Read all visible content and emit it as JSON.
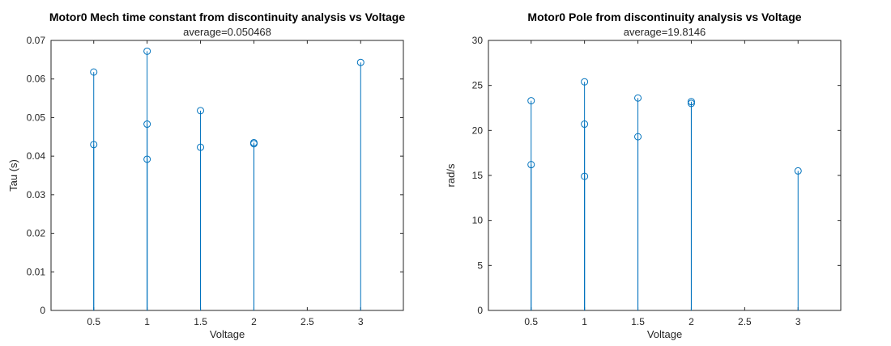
{
  "chart_data": [
    {
      "type": "scatter",
      "style": "stem",
      "title": "Motor0 Mech time constant from discontinuity analysis vs Voltage",
      "subtitle": "average=0.050468",
      "xlabel": "Voltage",
      "ylabel": "Tau (s)",
      "xlim": [
        0.1,
        3.4
      ],
      "ylim": [
        0,
        0.07
      ],
      "xticks": [
        0.5,
        1,
        1.5,
        2,
        2.5,
        3
      ],
      "xtick_labels": [
        "0.5",
        "1",
        "1.5",
        "2",
        "2.5",
        "3"
      ],
      "yticks": [
        0,
        0.01,
        0.02,
        0.03,
        0.04,
        0.05,
        0.06,
        0.07
      ],
      "ytick_labels": [
        "0",
        "0.01",
        "0.02",
        "0.03",
        "0.04",
        "0.05",
        "0.06",
        "0.07"
      ],
      "color": "#0072BD",
      "x": [
        0.5,
        0.5,
        1,
        1,
        1,
        1.5,
        1.5,
        2,
        2,
        3
      ],
      "y": [
        0.0618,
        0.043,
        0.0672,
        0.0483,
        0.0392,
        0.0518,
        0.0423,
        0.0435,
        0.0432,
        0.0643
      ]
    },
    {
      "type": "scatter",
      "style": "stem",
      "title": "Motor0  Pole from discontinuity analysis vs Voltage",
      "subtitle": "average=19.8146",
      "xlabel": "Voltage",
      "ylabel": "rad/s",
      "xlim": [
        0.1,
        3.4
      ],
      "ylim": [
        0,
        30
      ],
      "xticks": [
        0.5,
        1,
        1.5,
        2,
        2.5,
        3
      ],
      "xtick_labels": [
        "0.5",
        "1",
        "1.5",
        "2",
        "2.5",
        "3"
      ],
      "yticks": [
        0,
        5,
        10,
        15,
        20,
        25,
        30
      ],
      "ytick_labels": [
        "0",
        "5",
        "10",
        "15",
        "20",
        "25",
        "30"
      ],
      "color": "#0072BD",
      "x": [
        0.5,
        0.5,
        1,
        1,
        1,
        1.5,
        1.5,
        2,
        2,
        3
      ],
      "y": [
        23.3,
        16.2,
        25.4,
        20.7,
        14.9,
        23.6,
        19.3,
        23.2,
        23.0,
        15.5
      ]
    }
  ]
}
